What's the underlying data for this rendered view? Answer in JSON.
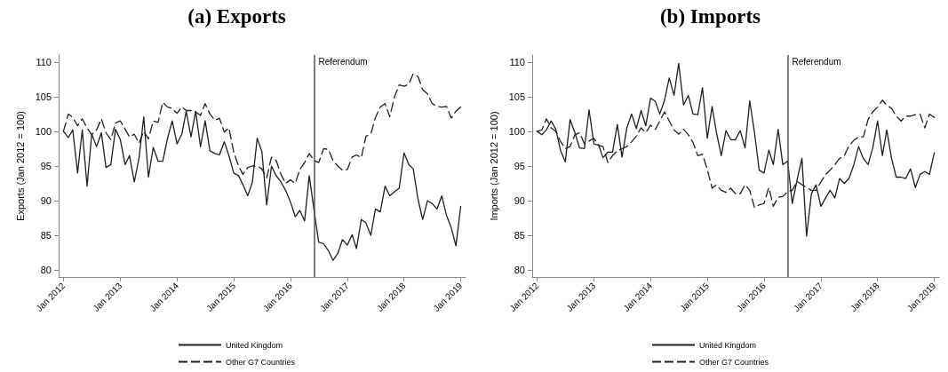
{
  "chart_data": [
    {
      "type": "line",
      "title": "(a) Exports",
      "ylabel": "Exports (Jan 2012 = 100)",
      "x": [
        "2012-01",
        "2012-02",
        "2012-03",
        "2012-04",
        "2012-05",
        "2012-06",
        "2012-07",
        "2012-08",
        "2012-09",
        "2012-10",
        "2012-11",
        "2012-12",
        "2013-01",
        "2013-02",
        "2013-03",
        "2013-04",
        "2013-05",
        "2013-06",
        "2013-07",
        "2013-08",
        "2013-09",
        "2013-10",
        "2013-11",
        "2013-12",
        "2014-01",
        "2014-02",
        "2014-03",
        "2014-04",
        "2014-05",
        "2014-06",
        "2014-07",
        "2014-08",
        "2014-09",
        "2014-10",
        "2014-11",
        "2014-12",
        "2015-01",
        "2015-02",
        "2015-03",
        "2015-04",
        "2015-05",
        "2015-06",
        "2015-07",
        "2015-08",
        "2015-09",
        "2015-10",
        "2015-11",
        "2015-12",
        "2016-01",
        "2016-02",
        "2016-03",
        "2016-04",
        "2016-05",
        "2016-06",
        "2016-07",
        "2016-08",
        "2016-09",
        "2016-10",
        "2016-11",
        "2016-12",
        "2017-01",
        "2017-02",
        "2017-03",
        "2017-04",
        "2017-05",
        "2017-06",
        "2017-07",
        "2017-08",
        "2017-09",
        "2017-10",
        "2017-11",
        "2017-12",
        "2018-01",
        "2018-02",
        "2018-03",
        "2018-04",
        "2018-05",
        "2018-06",
        "2018-07",
        "2018-08",
        "2018-09",
        "2018-10",
        "2018-11",
        "2018-12",
        "2019-01"
      ],
      "series": [
        {
          "name": "United Kingdom",
          "color": "#1e1e1e",
          "line_style": "solid",
          "values": [
            100,
            99.1,
            100.2,
            94,
            100.2,
            92.1,
            99.6,
            97.8,
            99.8,
            94.8,
            95.2,
            100.3,
            98.8,
            95.2,
            96.5,
            92.7,
            96.1,
            102.1,
            93.4,
            97.7,
            95.7,
            95.7,
            99,
            101.5,
            98.2,
            99.6,
            102.9,
            99.2,
            102.9,
            97.8,
            101.5,
            97.2,
            96.8,
            96.6,
            98.5,
            96.5,
            94,
            93.6,
            92.3,
            90.7,
            92.7,
            99,
            97.1,
            89.4,
            95,
            93.6,
            92.7,
            91.5,
            89.8,
            87.7,
            88.6,
            87.1,
            93.6,
            88.6,
            84,
            83.8,
            82.8,
            81.4,
            82.4,
            84.4,
            83.6,
            85.1,
            83.1,
            87.3,
            86.8,
            85,
            88.8,
            88.4,
            92.1,
            90.7,
            91.3,
            91.8,
            96.9,
            95.2,
            94.6,
            90.2,
            87.3,
            90,
            89.6,
            88.8,
            90.7,
            87.9,
            86.1,
            83.5,
            89.2
          ]
        },
        {
          "name": "Other G7 Countries",
          "color": "#1e1e1e",
          "line_style": "dashed",
          "values": [
            100,
            102.5,
            102,
            100.8,
            101.8,
            100.5,
            99.5,
            100.2,
            101.8,
            99.8,
            98.8,
            101.2,
            101.5,
            100.3,
            99.2,
            99.6,
            98.3,
            100,
            98.9,
            101.5,
            101.3,
            104.2,
            103.5,
            103.3,
            102.6,
            103.5,
            103,
            103,
            102.8,
            102.3,
            104,
            102.5,
            101.6,
            101.9,
            99.9,
            100.5,
            97,
            95,
            93.8,
            94.8,
            95,
            95,
            94.6,
            93.3,
            96.3,
            95.8,
            93.8,
            92.5,
            93,
            92.5,
            94.5,
            95.5,
            96.8,
            95.8,
            95.5,
            97.5,
            97.4,
            95.8,
            95,
            94.4,
            94.5,
            96.3,
            96.6,
            96.2,
            99.3,
            99.6,
            102,
            103.5,
            104,
            102.1,
            105,
            106.7,
            106.5,
            106.8,
            108.3,
            107.9,
            106,
            105.4,
            104,
            103.6,
            103.5,
            103.6,
            101.9,
            102.9,
            103.5
          ]
        }
      ],
      "xlim": [
        "2011-12",
        "2019-02"
      ],
      "xticks": [
        {
          "value": "2012-01",
          "label": "Jan 2012"
        },
        {
          "value": "2013-01",
          "label": "Jan 2013"
        },
        {
          "value": "2014-01",
          "label": "Jan 2014"
        },
        {
          "value": "2015-01",
          "label": "Jan 2015"
        },
        {
          "value": "2016-01",
          "label": "Jan 2016"
        },
        {
          "value": "2017-01",
          "label": "Jan 2017"
        },
        {
          "value": "2018-01",
          "label": "Jan 2018"
        },
        {
          "value": "2019-01",
          "label": "Jan 2019"
        }
      ],
      "ylim": [
        79,
        111
      ],
      "yticks": [
        80,
        85,
        90,
        95,
        100,
        105,
        110
      ],
      "ref_lines": [
        {
          "axis": "x",
          "value": "2016-06",
          "label": "Referendum",
          "color": "#555555"
        }
      ],
      "grid": false,
      "legend": "bottom",
      "marker": "none"
    },
    {
      "type": "line",
      "title": "(b) Imports",
      "ylabel": "Imports (Jan 2012 = 100)",
      "x": [
        "2012-01",
        "2012-02",
        "2012-03",
        "2012-04",
        "2012-05",
        "2012-06",
        "2012-07",
        "2012-08",
        "2012-09",
        "2012-10",
        "2012-11",
        "2012-12",
        "2013-01",
        "2013-02",
        "2013-03",
        "2013-04",
        "2013-05",
        "2013-06",
        "2013-07",
        "2013-08",
        "2013-09",
        "2013-10",
        "2013-11",
        "2013-12",
        "2014-01",
        "2014-02",
        "2014-03",
        "2014-04",
        "2014-05",
        "2014-06",
        "2014-07",
        "2014-08",
        "2014-09",
        "2014-10",
        "2014-11",
        "2014-12",
        "2015-01",
        "2015-02",
        "2015-03",
        "2015-04",
        "2015-05",
        "2015-06",
        "2015-07",
        "2015-08",
        "2015-09",
        "2015-10",
        "2015-11",
        "2015-12",
        "2016-01",
        "2016-02",
        "2016-03",
        "2016-04",
        "2016-05",
        "2016-06",
        "2016-07",
        "2016-08",
        "2016-09",
        "2016-10",
        "2016-11",
        "2016-12",
        "2017-01",
        "2017-02",
        "2017-03",
        "2017-04",
        "2017-05",
        "2017-06",
        "2017-07",
        "2017-08",
        "2017-09",
        "2017-10",
        "2017-11",
        "2017-12",
        "2018-01",
        "2018-02",
        "2018-03",
        "2018-04",
        "2018-05",
        "2018-06",
        "2018-07",
        "2018-08",
        "2018-09",
        "2018-10",
        "2018-11",
        "2018-12",
        "2019-01"
      ],
      "series": [
        {
          "name": "United Kingdom",
          "color": "#1e1e1e",
          "line_style": "solid",
          "values": [
            100,
            99.5,
            100.2,
            101.5,
            100.3,
            97.2,
            95.6,
            101.7,
            99.8,
            97.6,
            97.5,
            103.1,
            98.2,
            98,
            96.2,
            97,
            97,
            101,
            96.3,
            100.5,
            102.5,
            100.4,
            103,
            100.8,
            104.8,
            104.3,
            102.5,
            104.5,
            107.7,
            105.2,
            109.8,
            103.8,
            105.2,
            102.5,
            102.4,
            106.3,
            99,
            103.6,
            99.8,
            96.5,
            100.1,
            98.8,
            98.8,
            100.1,
            97.6,
            104.4,
            99.8,
            94.4,
            94,
            97.3,
            95.2,
            100.3,
            95.2,
            95.7,
            89.6,
            93,
            96.1,
            84.9,
            91,
            92.3,
            89.2,
            90.4,
            91.5,
            90.4,
            93.2,
            92.5,
            93.2,
            95.2,
            97.8,
            96.1,
            95.2,
            97.6,
            101.5,
            96.5,
            100.2,
            96.1,
            93.4,
            93.4,
            93.2,
            94.6,
            91.9,
            93.8,
            94.2,
            93.8,
            96.9
          ]
        },
        {
          "name": "Other G7 Countries",
          "color": "#1e1e1e",
          "line_style": "dashed",
          "values": [
            100,
            100.2,
            101.8,
            100.5,
            100,
            98.5,
            97.5,
            97.8,
            99.5,
            99.8,
            98.2,
            98.6,
            99,
            98,
            97.8,
            95.5,
            96.5,
            97.2,
            97.5,
            97.8,
            98.5,
            99.3,
            100.5,
            99.8,
            100.9,
            100.3,
            101.5,
            102.8,
            101.5,
            100.2,
            99.6,
            100.3,
            99.5,
            98.4,
            96.5,
            96.7,
            94.5,
            91.8,
            92.3,
            91.5,
            91.2,
            91.8,
            91,
            91,
            92.3,
            91.5,
            89,
            89.4,
            89.6,
            91.9,
            89.2,
            90.5,
            90.6,
            91.3,
            91.5,
            92.8,
            92.3,
            91.9,
            91.5,
            91.5,
            92.7,
            93.8,
            94.4,
            95.2,
            96.1,
            96.5,
            97.9,
            98.7,
            99.2,
            99.2,
            101.7,
            102.8,
            103.5,
            104.5,
            103.8,
            103.3,
            102.2,
            101.5,
            102.2,
            102.2,
            102.4,
            102.5,
            100.5,
            102.5,
            102
          ]
        }
      ],
      "xlim": [
        "2011-12",
        "2019-02"
      ],
      "xticks": [
        {
          "value": "2012-01",
          "label": "Jan 2012"
        },
        {
          "value": "2013-01",
          "label": "Jan 2013"
        },
        {
          "value": "2014-01",
          "label": "Jan 2014"
        },
        {
          "value": "2015-01",
          "label": "Jan 2015"
        },
        {
          "value": "2016-01",
          "label": "Jan 2016"
        },
        {
          "value": "2017-01",
          "label": "Jan 2017"
        },
        {
          "value": "2018-01",
          "label": "Jan 2018"
        },
        {
          "value": "2019-01",
          "label": "Jan 2019"
        }
      ],
      "ylim": [
        79,
        111
      ],
      "yticks": [
        80,
        85,
        90,
        95,
        100,
        105,
        110
      ],
      "ref_lines": [
        {
          "axis": "x",
          "value": "2016-06",
          "label": "Referendum",
          "color": "#555555"
        }
      ],
      "grid": false,
      "legend": "bottom",
      "marker": "none"
    }
  ]
}
